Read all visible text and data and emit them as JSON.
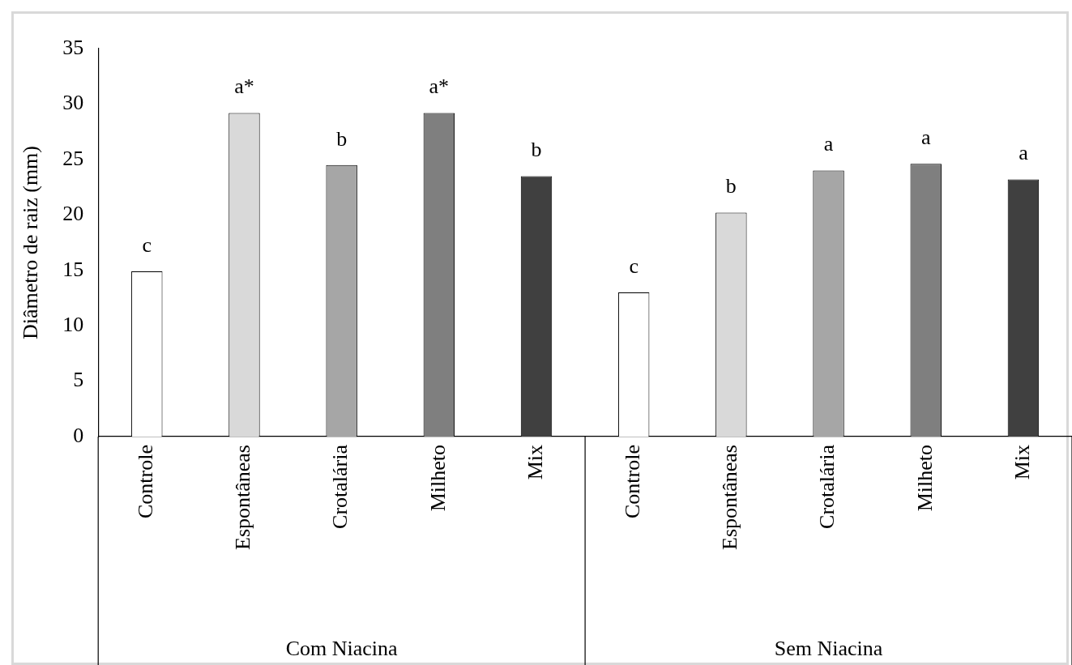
{
  "chart_data": {
    "type": "bar",
    "ylabel": "Diâmetro de raiz (mm)",
    "categories": [
      "Controle",
      "Espontâneas",
      "Crotalária",
      "Milheto",
      "Mix",
      "Controle",
      "Espontâneas",
      "Crotalária",
      "Milheto",
      "Mix"
    ],
    "values": [
      14.9,
      29.2,
      24.5,
      29.2,
      23.5,
      13.0,
      20.2,
      24.0,
      24.6,
      23.2
    ],
    "colors": [
      "#ffffff",
      "#d9d9d9",
      "#a6a6a6",
      "#7f7f7f",
      "#404040",
      "#ffffff",
      "#d9d9d9",
      "#a6a6a6",
      "#7f7f7f",
      "#404040"
    ],
    "value_labels": [
      "c",
      "a*",
      "b",
      "a*",
      "b",
      "c",
      "b",
      "a",
      "a",
      "a"
    ],
    "annotations": [
      "Com Niacina",
      "Sem Niacina"
    ],
    "ylim": [
      0,
      35
    ],
    "yticks": [
      0,
      5,
      10,
      15,
      20,
      25,
      30,
      35
    ],
    "grid": false,
    "legend": false
  }
}
